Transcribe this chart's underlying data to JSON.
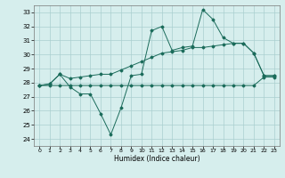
{
  "title": "",
  "xlabel": "Humidex (Indice chaleur)",
  "xlim": [
    -0.5,
    23.5
  ],
  "ylim": [
    23.5,
    33.5
  ],
  "yticks": [
    24,
    25,
    26,
    27,
    28,
    29,
    30,
    31,
    32,
    33
  ],
  "xticks": [
    0,
    1,
    2,
    3,
    4,
    5,
    6,
    7,
    8,
    9,
    10,
    11,
    12,
    13,
    14,
    15,
    16,
    17,
    18,
    19,
    20,
    21,
    22,
    23
  ],
  "background_color": "#d6eeed",
  "line_color": "#1a6b5a",
  "grid_color": "#aacfcf",
  "series": {
    "main_zigzag": {
      "x": [
        0,
        1,
        2,
        3,
        4,
        5,
        6,
        7,
        8,
        9,
        10,
        11,
        12,
        13,
        14,
        15,
        16,
        17,
        18,
        19,
        20,
        21,
        22,
        23
      ],
      "y": [
        27.8,
        27.9,
        28.6,
        27.7,
        27.2,
        27.2,
        25.8,
        24.3,
        26.2,
        28.5,
        28.6,
        31.7,
        32.0,
        30.3,
        30.5,
        30.6,
        33.2,
        32.5,
        31.2,
        30.8,
        30.8,
        30.1,
        28.5,
        28.5
      ]
    },
    "upper_trend": {
      "x": [
        0,
        1,
        2,
        3,
        4,
        5,
        6,
        7,
        8,
        9,
        10,
        11,
        12,
        13,
        14,
        15,
        16,
        17,
        18,
        19,
        20,
        21,
        22,
        23
      ],
      "y": [
        27.8,
        27.9,
        28.6,
        28.3,
        28.4,
        28.5,
        28.6,
        28.6,
        28.9,
        29.2,
        29.5,
        29.8,
        30.1,
        30.2,
        30.3,
        30.5,
        30.5,
        30.6,
        30.7,
        30.8,
        30.8,
        30.1,
        28.5,
        28.5
      ]
    },
    "lower_flat": {
      "x": [
        0,
        1,
        2,
        3,
        4,
        5,
        6,
        7,
        8,
        9,
        10,
        11,
        12,
        13,
        14,
        15,
        16,
        17,
        18,
        19,
        20,
        21,
        22,
        23
      ],
      "y": [
        27.8,
        27.8,
        27.8,
        27.8,
        27.8,
        27.8,
        27.8,
        27.8,
        27.8,
        27.8,
        27.8,
        27.8,
        27.8,
        27.8,
        27.8,
        27.8,
        27.8,
        27.8,
        27.8,
        27.8,
        27.8,
        27.8,
        28.4,
        28.4
      ]
    }
  }
}
